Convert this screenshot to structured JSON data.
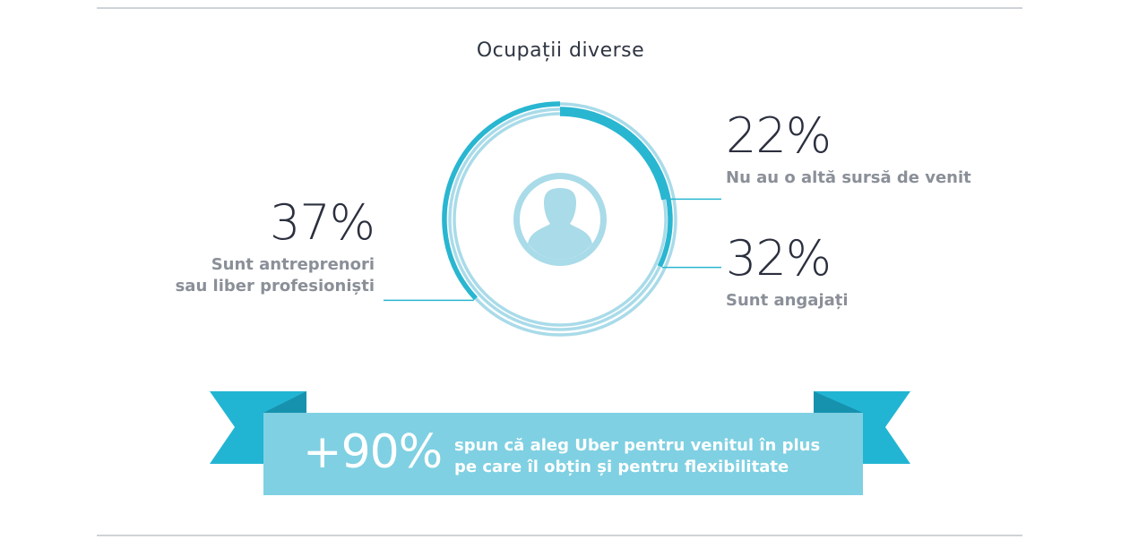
{
  "chart_data": {
    "type": "pie",
    "title": "Ocupații diverse",
    "slices": [
      {
        "value": 22,
        "label": "22%",
        "description": "Nu au o altă sursă de venit"
      },
      {
        "value": 32,
        "label": "32%",
        "description": "Sunt angajați"
      },
      {
        "value": 37,
        "label": "37%",
        "description_lines": [
          "Sunt antreprenori",
          "sau liber profesioniști"
        ]
      }
    ]
  },
  "banner": {
    "stat": "+90%",
    "text_lines": [
      "spun că aleg Uber pentru venitul în plus",
      "pe care îl obțin și pentru flexibilitate"
    ]
  },
  "colors": {
    "accent": "#29b6d1",
    "light_ring": "#a9dbe9",
    "banner_main": "#7fd0e2",
    "banner_tail": "#22b5d3",
    "banner_fold": "#1692ae",
    "text_dark": "#2b2f3e",
    "text_muted": "#8a8f98"
  },
  "icons": {
    "center": "user-silhouette-icon"
  }
}
